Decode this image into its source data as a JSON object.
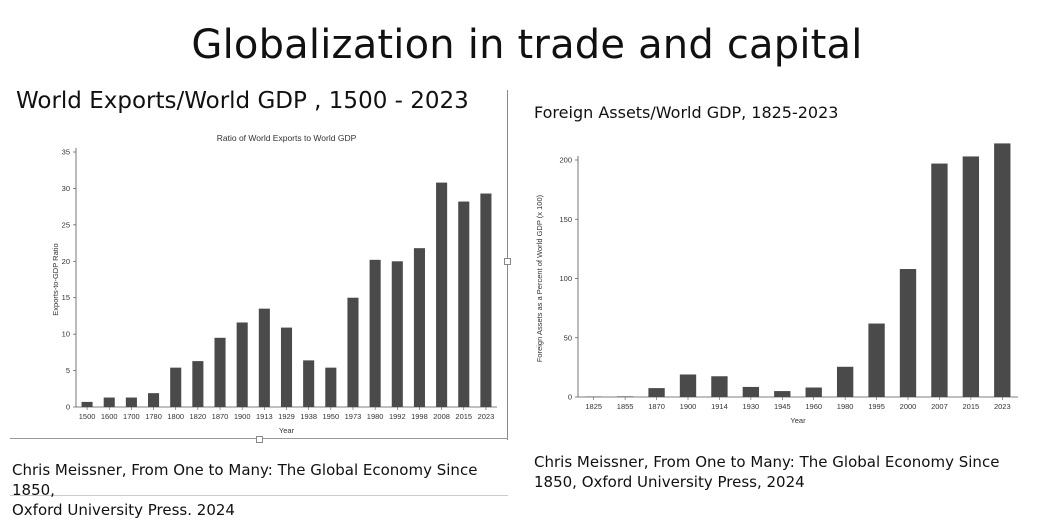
{
  "slide": {
    "title": "Globalization in trade and capital"
  },
  "left_panel": {
    "heading": "World Exports/World GDP , 1500 - 2023",
    "citation_line1": "Chris Meissner, From One to Many:  The Global Economy Since 1850,",
    "citation_line2": "Oxford University Press. 2024"
  },
  "right_panel": {
    "heading": "Foreign Assets/World GDP, 1825-2023",
    "citation_line1": "Chris Meissner, From One to Many:  The Global Economy Since",
    "citation_line2": "1850, Oxford University Press, 2024"
  },
  "colors": {
    "bar": "#4a4a4a",
    "axis": "#555555"
  },
  "chart_data": [
    {
      "type": "bar",
      "title": "Ratio of World Exports to World GDP",
      "xlabel": "Year",
      "ylabel": "Exports-to-GDP Ratio",
      "ylim": [
        0,
        35
      ],
      "yticks": [
        0,
        5,
        10,
        15,
        20,
        25,
        30,
        35
      ],
      "grid": false,
      "categories": [
        "1500",
        "1600",
        "1700",
        "1780",
        "1800",
        "1820",
        "1870",
        "1900",
        "1913",
        "1929",
        "1938",
        "1950",
        "1973",
        "1980",
        "1992",
        "1998",
        "2008",
        "2015",
        "2023"
      ],
      "values": [
        0.7,
        1.3,
        1.3,
        1.9,
        5.4,
        6.3,
        9.5,
        11.6,
        13.5,
        10.9,
        6.4,
        5.4,
        15.0,
        20.2,
        20.0,
        21.8,
        30.8,
        28.2,
        29.3
      ]
    },
    {
      "type": "bar",
      "title": "",
      "xlabel": "Year",
      "ylabel": "Foreign Assets as a Percent of World GDP (x 100)",
      "ylim": [
        0,
        200
      ],
      "yticks": [
        0,
        50,
        100,
        150,
        200
      ],
      "grid": false,
      "categories": [
        "1825",
        "1855",
        "1870",
        "1900",
        "1914",
        "1930",
        "1945",
        "1960",
        "1980",
        "1995",
        "2000",
        "2007",
        "2015",
        "2023"
      ],
      "values": [
        0.3,
        0.5,
        7.5,
        19,
        17.5,
        8.5,
        5,
        8,
        25.5,
        62,
        108,
        197,
        203,
        214
      ]
    }
  ]
}
